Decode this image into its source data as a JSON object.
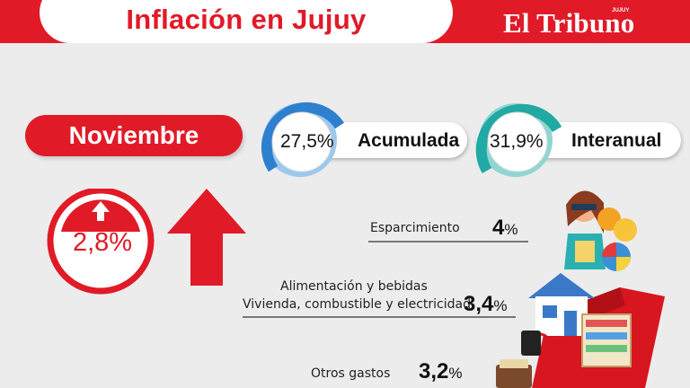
{
  "header": {
    "title": "Inflación en Jujuy",
    "brand": "El Tribuno",
    "brand_sub": "JUJUY"
  },
  "period": {
    "month": "Noviembre"
  },
  "monthly": {
    "value": "2,8%",
    "direction": "up"
  },
  "gauges": [
    {
      "value": "27,5%",
      "label": "Acumulada",
      "color": "#3d8fd9"
    },
    {
      "value": "31,9%",
      "label": "Interanual",
      "color": "#2ab3ad"
    }
  ],
  "categories": [
    {
      "label": "Esparcimiento",
      "value": "4",
      "unit": "%"
    },
    {
      "label": "Alimentación y bebidas",
      "label2": "Vivienda, combustible y electricidad",
      "value": "3,4",
      "unit": "%"
    },
    {
      "label": "Otros gastos",
      "value": "3,2",
      "unit": "%"
    }
  ],
  "colors": {
    "brand_red": "#e11a27",
    "background": "#ececec"
  }
}
